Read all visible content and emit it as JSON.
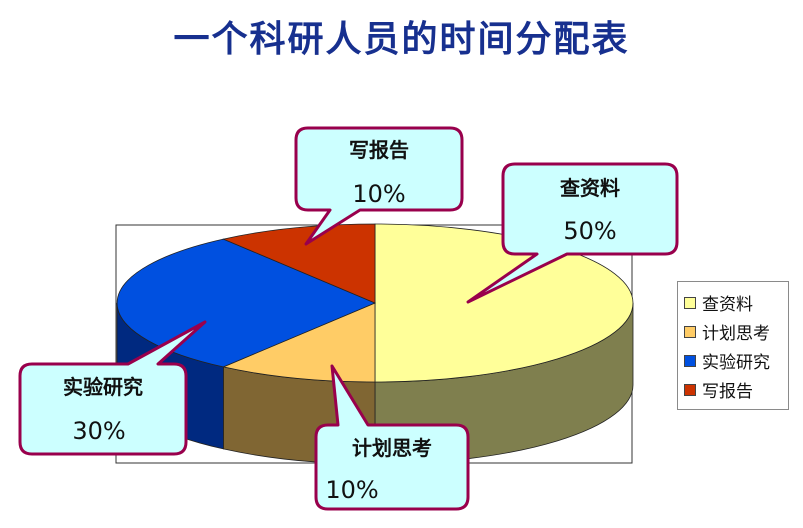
{
  "chart_data": {
    "type": "pie",
    "title": "一个科研人员的时间分配表",
    "categories": [
      "查资料",
      "计划思考",
      "实验研究",
      "写报告"
    ],
    "values": [
      50,
      10,
      30,
      10
    ],
    "value_labels": [
      "50%",
      "10%",
      "30%",
      "10%"
    ],
    "three_d": true,
    "legend_position": "right",
    "colors": {
      "top": [
        "#ffff99",
        "#ffcc66",
        "#0050e0",
        "#cc3300"
      ],
      "side": [
        "#7f7f4e",
        "#806633",
        "#002980",
        "#661a00"
      ],
      "edge": [
        "#cccc7a",
        "#cca352",
        "#003bb3",
        "#a32900"
      ]
    },
    "callout_style": {
      "fill": "#ccffff",
      "stroke": "#99004c"
    }
  }
}
